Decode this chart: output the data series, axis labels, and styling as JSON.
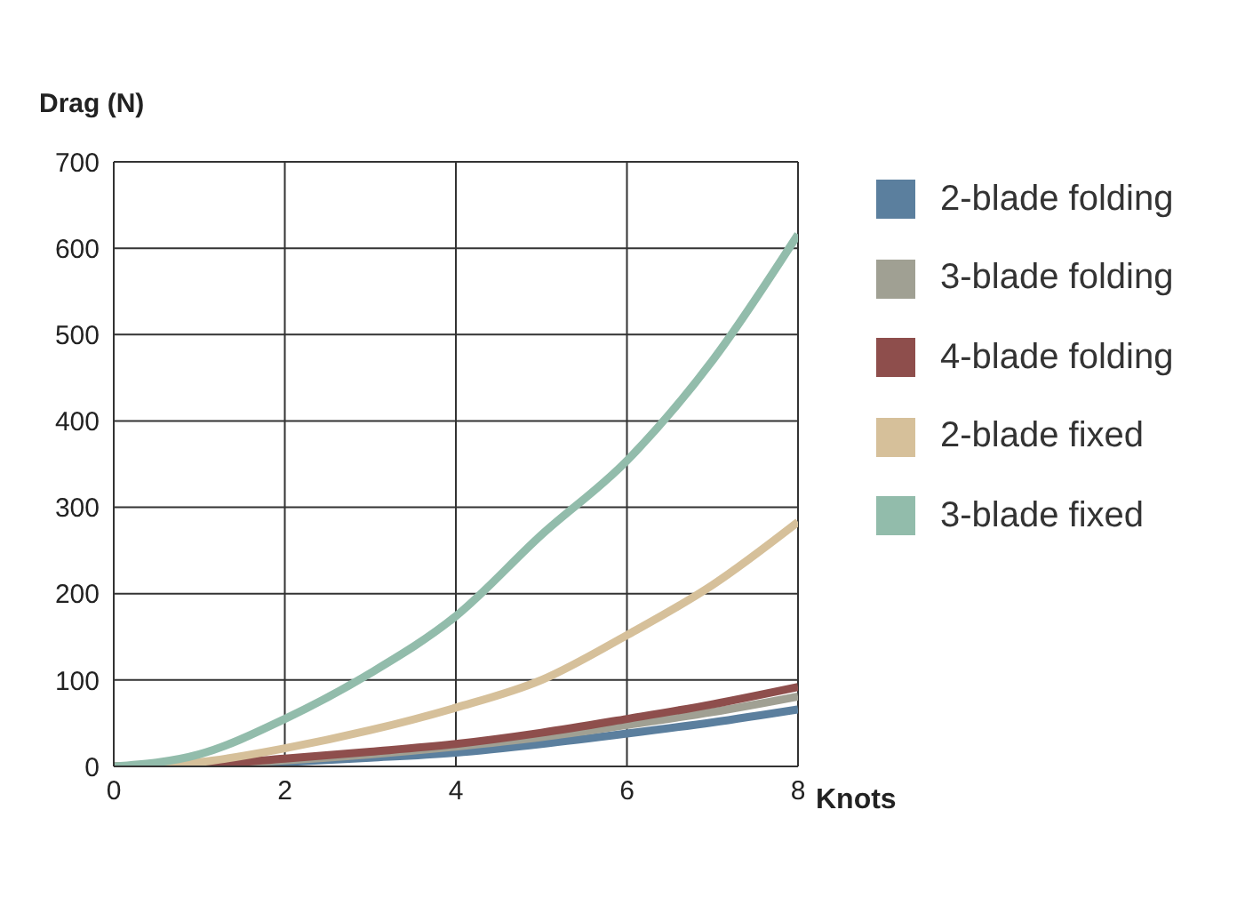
{
  "chart_data": {
    "type": "line",
    "ylabel": "Drag (N)",
    "xlabel": "Knots",
    "x": [
      0,
      1,
      2,
      3,
      4,
      5,
      6,
      7,
      8
    ],
    "series": [
      {
        "name": "2-blade folding",
        "color": "#5b7f9e",
        "values": [
          0,
          1,
          5,
          10,
          16,
          26,
          38,
          51,
          66
        ]
      },
      {
        "name": "3-blade folding",
        "color": "#a0a093",
        "values": [
          0,
          2,
          7,
          14,
          23,
          34,
          48,
          63,
          81
        ]
      },
      {
        "name": "4-blade folding",
        "color": "#8e4e4c",
        "values": [
          0,
          2,
          9,
          17,
          26,
          39,
          55,
          72,
          92
        ]
      },
      {
        "name": "2-blade fixed",
        "color": "#d6c09a",
        "values": [
          0,
          5,
          21,
          42,
          68,
          100,
          152,
          210,
          283
        ]
      },
      {
        "name": "3-blade fixed",
        "color": "#92bcab",
        "values": [
          0,
          14,
          55,
          108,
          174,
          268,
          354,
          470,
          616
        ]
      }
    ],
    "xlim": [
      0,
      8
    ],
    "xticks": [
      0,
      2,
      4,
      6,
      8
    ],
    "ylim": [
      0,
      700
    ],
    "yticks": [
      0,
      100,
      200,
      300,
      400,
      500,
      600,
      700
    ],
    "grid": true,
    "legend": "right",
    "marker": "none",
    "line_style": "solid"
  }
}
